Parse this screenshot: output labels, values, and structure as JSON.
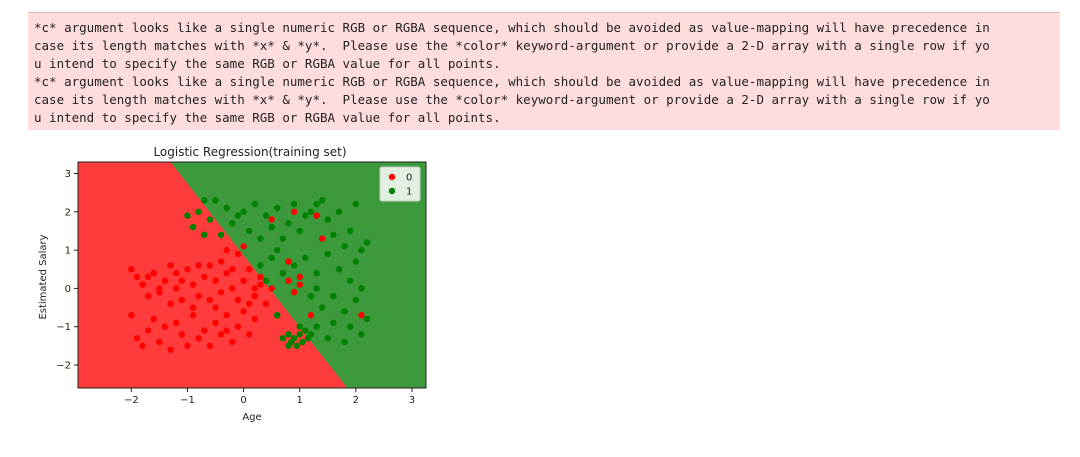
{
  "stderr": {
    "lines": [
      "*c* argument looks like a single numeric RGB or RGBA sequence, which should be avoided as value-mapping will have precedence in",
      "case its length matches with *x* & *y*.  Please use the *color* keyword-argument or provide a 2-D array with a single row if yo",
      "u intend to specify the same RGB or RGBA value for all points.",
      "*c* argument looks like a single numeric RGB or RGBA sequence, which should be avoided as value-mapping will have precedence in",
      "case its length matches with *x* & *y*.  Please use the *color* keyword-argument or provide a 2-D array with a single row if yo",
      "u intend to specify the same RGB or RGBA value for all points."
    ]
  },
  "chart_data": {
    "type": "scatter",
    "title": "Logistic Regression(training set)",
    "xlabel": "Age",
    "ylabel": "Estimated Salary",
    "xlim": [
      -2.95,
      3.25
    ],
    "ylim": [
      -2.6,
      3.3
    ],
    "xticks": [
      -2,
      -1,
      0,
      1,
      2,
      3
    ],
    "yticks": [
      -2,
      -1,
      0,
      1,
      2,
      3
    ],
    "xtick_labels": [
      "−2",
      "−1",
      "0",
      "1",
      "2",
      "3"
    ],
    "ytick_labels": [
      "−2",
      "−1",
      "0",
      "1",
      "2",
      "3"
    ],
    "legend": {
      "placement": "top-right",
      "entries": [
        "0",
        "1"
      ]
    },
    "colors": {
      "class_0": "#ff0000",
      "class_1": "#008000",
      "region_0": "#ff3b3b",
      "region_1": "#3c9a3c"
    },
    "decision_boundary": [
      [
        -1.3,
        3.3
      ],
      [
        1.85,
        -2.6
      ]
    ],
    "series": [
      {
        "name": "0",
        "color": "#ff0000",
        "points": [
          [
            -2.0,
            0.5
          ],
          [
            -1.9,
            0.3
          ],
          [
            -1.8,
            0.1
          ],
          [
            -1.7,
            -0.2
          ],
          [
            -1.6,
            0.4
          ],
          [
            -1.5,
            -0.1
          ],
          [
            -1.4,
            0.2
          ],
          [
            -1.3,
            0.6
          ],
          [
            -1.2,
            0.0
          ],
          [
            -1.1,
            -0.3
          ],
          [
            -1.0,
            0.5
          ],
          [
            -0.9,
            0.1
          ],
          [
            -0.8,
            -0.2
          ],
          [
            -0.7,
            0.3
          ],
          [
            -0.6,
            0.6
          ],
          [
            -0.5,
            0.2
          ],
          [
            -0.4,
            -0.1
          ],
          [
            -0.3,
            0.4
          ],
          [
            -0.2,
            0.0
          ],
          [
            -0.1,
            -0.3
          ],
          [
            0.0,
            0.2
          ],
          [
            0.1,
            0.5
          ],
          [
            0.2,
            -0.2
          ],
          [
            0.3,
            0.1
          ],
          [
            0.4,
            -0.4
          ],
          [
            -0.1,
            0.9
          ],
          [
            0.0,
            1.1
          ],
          [
            -0.3,
            1.0
          ],
          [
            -2.0,
            -0.7
          ],
          [
            -1.9,
            -1.3
          ],
          [
            -1.8,
            -1.5
          ],
          [
            -1.7,
            -1.1
          ],
          [
            -1.6,
            -0.8
          ],
          [
            -1.5,
            -1.4
          ],
          [
            -1.4,
            -1.0
          ],
          [
            -1.3,
            -1.6
          ],
          [
            -1.2,
            -0.9
          ],
          [
            -1.1,
            -1.2
          ],
          [
            -1.0,
            -1.5
          ],
          [
            -0.9,
            -0.7
          ],
          [
            -0.8,
            -1.3
          ],
          [
            -0.7,
            -1.1
          ],
          [
            -0.6,
            -1.5
          ],
          [
            -0.5,
            -0.9
          ],
          [
            -0.4,
            -1.2
          ],
          [
            -0.3,
            -0.7
          ],
          [
            -0.2,
            -1.4
          ],
          [
            -0.1,
            -1.0
          ],
          [
            0.0,
            -0.6
          ],
          [
            0.1,
            -1.2
          ],
          [
            0.2,
            -0.8
          ],
          [
            -1.5,
            0.0
          ],
          [
            -1.2,
            0.4
          ],
          [
            -0.8,
            0.6
          ],
          [
            -0.4,
            0.7
          ],
          [
            0.1,
            -0.4
          ],
          [
            -0.6,
            -0.3
          ],
          [
            -0.9,
            -0.5
          ],
          [
            -1.3,
            -0.4
          ],
          [
            -1.7,
            0.3
          ],
          [
            -0.2,
            0.5
          ],
          [
            0.3,
            0.3
          ],
          [
            0.5,
            0.0
          ],
          [
            -0.5,
            -0.5
          ],
          [
            0.2,
            0.0
          ],
          [
            -0.3,
            -1.1
          ],
          [
            -1.1,
            0.2
          ],
          [
            0.8,
            0.7
          ],
          [
            0.8,
            0.2
          ],
          [
            0.9,
            -0.1
          ],
          [
            1.0,
            0.3
          ],
          [
            0.5,
            1.8
          ],
          [
            0.9,
            2.0
          ],
          [
            1.4,
            1.3
          ],
          [
            1.3,
            1.9
          ],
          [
            1.0,
            0.1
          ],
          [
            2.1,
            -0.7
          ],
          [
            1.2,
            -0.7
          ]
        ]
      },
      {
        "name": "1",
        "color": "#008000",
        "points": [
          [
            -1.0,
            1.9
          ],
          [
            -0.9,
            1.6
          ],
          [
            -0.8,
            2.0
          ],
          [
            -0.7,
            1.4
          ],
          [
            -0.6,
            1.8
          ],
          [
            -0.5,
            2.3
          ],
          [
            -0.4,
            1.4
          ],
          [
            -0.3,
            2.1
          ],
          [
            -0.2,
            1.7
          ],
          [
            -0.1,
            1.9
          ],
          [
            0.0,
            2.0
          ],
          [
            0.1,
            1.5
          ],
          [
            0.2,
            2.2
          ],
          [
            0.3,
            1.3
          ],
          [
            0.4,
            1.9
          ],
          [
            0.5,
            1.6
          ],
          [
            0.6,
            2.1
          ],
          [
            0.7,
            1.3
          ],
          [
            0.8,
            1.7
          ],
          [
            0.9,
            2.2
          ],
          [
            1.0,
            1.5
          ],
          [
            1.1,
            1.9
          ],
          [
            1.2,
            2.0
          ],
          [
            1.3,
            2.2
          ],
          [
            1.4,
            2.3
          ],
          [
            1.5,
            1.8
          ],
          [
            1.6,
            1.4
          ],
          [
            1.7,
            2.0
          ],
          [
            1.8,
            1.1
          ],
          [
            1.9,
            1.5
          ],
          [
            2.0,
            2.2
          ],
          [
            2.1,
            1.0
          ],
          [
            2.2,
            1.2
          ],
          [
            0.3,
            0.6
          ],
          [
            0.5,
            0.8
          ],
          [
            0.7,
            0.4
          ],
          [
            0.9,
            0.6
          ],
          [
            1.1,
            0.8
          ],
          [
            1.3,
            0.4
          ],
          [
            1.5,
            0.9
          ],
          [
            1.7,
            0.5
          ],
          [
            1.9,
            0.2
          ],
          [
            2.0,
            0.7
          ],
          [
            2.1,
            0.0
          ],
          [
            1.2,
            -0.2
          ],
          [
            1.4,
            -0.5
          ],
          [
            1.6,
            -0.2
          ],
          [
            1.8,
            -0.6
          ],
          [
            2.0,
            -0.3
          ],
          [
            2.2,
            -0.8
          ],
          [
            0.8,
            -1.2
          ],
          [
            0.85,
            -1.4
          ],
          [
            0.9,
            -1.3
          ],
          [
            0.95,
            -1.5
          ],
          [
            1.0,
            -1.2
          ],
          [
            1.05,
            -1.4
          ],
          [
            1.1,
            -1.1
          ],
          [
            1.15,
            -1.3
          ],
          [
            0.8,
            -1.5
          ],
          [
            1.0,
            -1.0
          ],
          [
            1.2,
            -1.2
          ],
          [
            1.3,
            -1.0
          ],
          [
            1.5,
            -1.3
          ],
          [
            0.7,
            -1.3
          ],
          [
            1.8,
            -1.4
          ],
          [
            2.1,
            -1.2
          ],
          [
            1.6,
            -0.9
          ],
          [
            1.9,
            -1.0
          ],
          [
            0.6,
            -0.7
          ],
          [
            0.4,
            0.2
          ],
          [
            0.6,
            1.0
          ],
          [
            -0.7,
            2.3
          ],
          [
            1.3,
            0.0
          ]
        ]
      }
    ]
  }
}
